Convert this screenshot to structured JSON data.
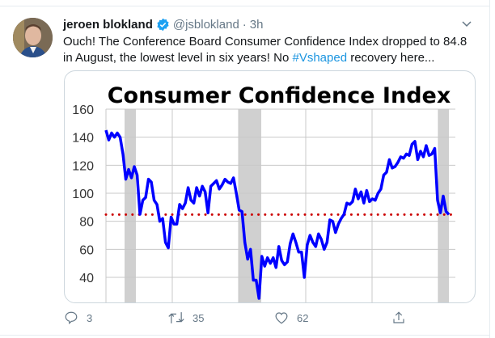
{
  "tweet": {
    "author_name": "jeroen blokland",
    "verified": true,
    "handle": "@jsblokland",
    "separator": "·",
    "time": "3h",
    "text_before": "Ouch! The Conference Board Consumer Confidence Index dropped to 84.8 in August, the lowest level in six years! No ",
    "hashtag": "#Vshaped",
    "text_after": " recovery here...",
    "accent_color": "#1b95e0"
  },
  "actions": {
    "reply_count": "3",
    "retweet_count": "35",
    "like_count": "62"
  },
  "chart_data": {
    "type": "line",
    "title": "Consumer Confidence Index",
    "ylim": [
      20,
      160
    ],
    "yticks": [
      "160",
      "140",
      "120",
      "100",
      "80",
      "60",
      "40"
    ],
    "grid": true,
    "line_color": "#0000ff",
    "reference_line": {
      "value": 84.8,
      "color": "#cc0000",
      "style": "dotted"
    },
    "recession_shading_color": "#d0d0d0",
    "series": [
      {
        "values": [
          145,
          138,
          143,
          140,
          143,
          140,
          128,
          110,
          117,
          111,
          119,
          113,
          85,
          95,
          97,
          110,
          108,
          95,
          92,
          80,
          82,
          65,
          61,
          83,
          78,
          78,
          92,
          89,
          93,
          104,
          95,
          93,
          104,
          98,
          105,
          101,
          86,
          105,
          107,
          109,
          103,
          106,
          110,
          108,
          107,
          111,
          100,
          88,
          87,
          65,
          53,
          60,
          38,
          38,
          25,
          55,
          48,
          54,
          50,
          54,
          47,
          62,
          52,
          49,
          51,
          64,
          71,
          65,
          58,
          58,
          40,
          63,
          70,
          65,
          62,
          71,
          67,
          60,
          65,
          81,
          80,
          72,
          78,
          82,
          85,
          93,
          92,
          94,
          103,
          96,
          101,
          93,
          102,
          94,
          96,
          95,
          100,
          103,
          113,
          115,
          124,
          118,
          119,
          122,
          126,
          125,
          128,
          127,
          135,
          137,
          124,
          130,
          126,
          134,
          127,
          128,
          132,
          95,
          86,
          98,
          87,
          84.8
        ]
      }
    ]
  }
}
